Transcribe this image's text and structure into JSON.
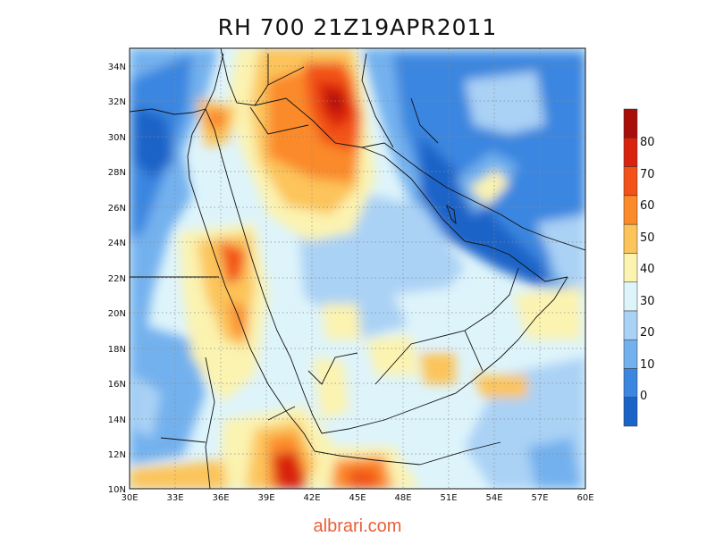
{
  "title": "RH 700 21Z19APR2011",
  "watermark": "albrari.com",
  "map": {
    "lon_range": [
      30,
      60
    ],
    "lat_range": [
      10,
      35
    ],
    "lon_ticks": [
      "30E",
      "33E",
      "36E",
      "39E",
      "42E",
      "45E",
      "48E",
      "51E",
      "54E",
      "57E",
      "60E"
    ],
    "lat_ticks": [
      "10N",
      "12N",
      "14N",
      "16N",
      "18N",
      "20N",
      "22N",
      "24N",
      "26N",
      "28N",
      "30N",
      "32N",
      "34N"
    ]
  },
  "colorbar": {
    "labels": [
      "0",
      "10",
      "20",
      "30",
      "40",
      "50",
      "60",
      "70",
      "80"
    ],
    "colors": [
      "#1c63c8",
      "#3a86e0",
      "#73b1ee",
      "#aad2f5",
      "#def4fb",
      "#fbf3b0",
      "#fcc45a",
      "#fb8a2a",
      "#f35218",
      "#d9230f",
      "#a80f0a"
    ]
  }
}
